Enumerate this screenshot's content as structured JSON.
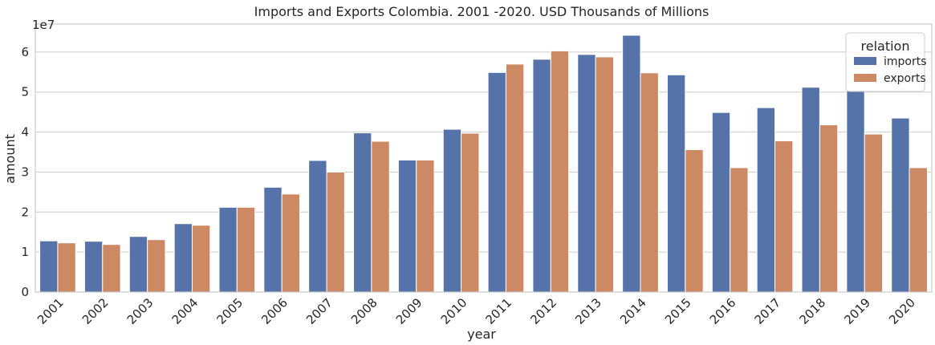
{
  "chart_data": {
    "type": "bar",
    "title": "Imports and Exports Colombia. 2001 -2020. USD Thousands of Millions",
    "xlabel": "year",
    "ylabel": "amount",
    "y_offset_label": "1e7",
    "ylim": [
      0,
      6.7
    ],
    "y_scale_multiplier": 10000000,
    "yticks": [
      0,
      1,
      2,
      3,
      4,
      5,
      6
    ],
    "grid": true,
    "categories": [
      "2001",
      "2002",
      "2003",
      "2004",
      "2005",
      "2006",
      "2007",
      "2008",
      "2009",
      "2010",
      "2011",
      "2012",
      "2013",
      "2014",
      "2015",
      "2016",
      "2017",
      "2018",
      "2019",
      "2020"
    ],
    "series": [
      {
        "name": "imports",
        "color": "#5573a8",
        "values": [
          1.28,
          1.27,
          1.39,
          1.71,
          2.12,
          2.62,
          3.29,
          3.98,
          3.3,
          4.07,
          5.49,
          5.82,
          5.94,
          6.42,
          5.43,
          4.49,
          4.61,
          5.12,
          5.04,
          4.35
        ]
      },
      {
        "name": "exports",
        "color": "#cd8963",
        "values": [
          1.23,
          1.19,
          1.31,
          1.67,
          2.12,
          2.45,
          3.0,
          3.77,
          3.3,
          3.97,
          5.7,
          6.03,
          5.88,
          5.48,
          3.56,
          3.11,
          3.78,
          4.18,
          3.95,
          3.11
        ]
      }
    ],
    "legend": {
      "title": "relation",
      "placement": "top-right"
    }
  }
}
